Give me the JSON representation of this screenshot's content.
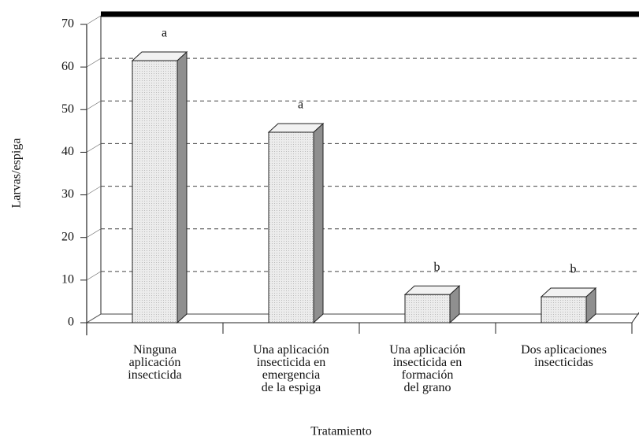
{
  "chart_data": {
    "type": "bar3d",
    "y_label": "Larvas/espiga",
    "x_label": "Tratamiento",
    "categories": [
      "Ninguna\naplicación\ninsecticida",
      "Una aplicación\ninsecticida en\nemergencia\nde la espiga",
      "Una aplicación\ninsecticida en\nformación\ndel grano",
      "Dos aplicaciones\ninsecticidas"
    ],
    "values": [
      61.5,
      44.7,
      6.6,
      6.1
    ],
    "annotations": [
      "a",
      "a",
      "b",
      "b"
    ],
    "color": "#e6e6e6",
    "ylim": [
      0,
      70
    ],
    "yticks": [
      0,
      10,
      20,
      30,
      40,
      50,
      60,
      70
    ],
    "grid": true
  }
}
